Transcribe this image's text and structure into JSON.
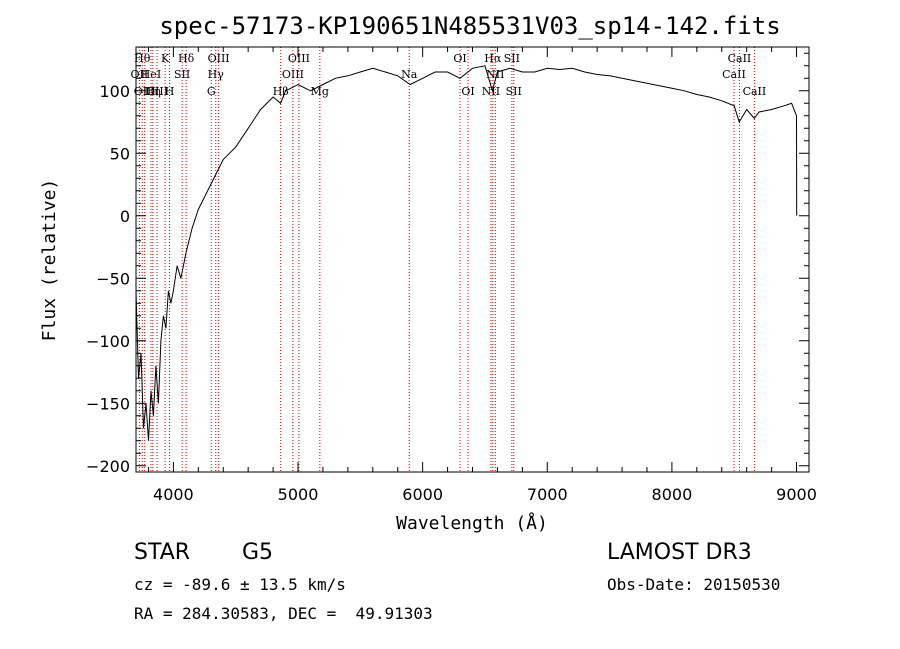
{
  "chart_data": {
    "type": "line",
    "title": "spec-57173-KP190651N485531V03_sp14-142.fits",
    "xlabel": "Wavelength (Å)",
    "ylabel": "Flux (relative)",
    "xlim": [
      3700,
      9100
    ],
    "ylim": [
      -205,
      135
    ],
    "xticks": [
      4000,
      5000,
      6000,
      7000,
      8000,
      9000
    ],
    "yticks": [
      -200,
      -150,
      -100,
      -50,
      0,
      50,
      100
    ],
    "spectrum": {
      "x": [
        3700,
        3720,
        3740,
        3760,
        3780,
        3800,
        3820,
        3840,
        3860,
        3880,
        3900,
        3920,
        3940,
        3960,
        3980,
        4000,
        4030,
        4060,
        4100,
        4150,
        4200,
        4250,
        4300,
        4350,
        4400,
        4450,
        4500,
        4600,
        4700,
        4800,
        4860,
        4900,
        5000,
        5100,
        5200,
        5300,
        5400,
        5500,
        5600,
        5700,
        5800,
        5900,
        6000,
        6100,
        6200,
        6300,
        6400,
        6500,
        6560,
        6600,
        6700,
        6800,
        6900,
        7000,
        7100,
        7200,
        7300,
        7400,
        7500,
        7600,
        7700,
        7800,
        7900,
        8000,
        8100,
        8200,
        8300,
        8400,
        8500,
        8540,
        8600,
        8660,
        8700,
        8800,
        8900,
        8960,
        9000,
        9001
      ],
      "y": [
        -60,
        -130,
        -110,
        -170,
        -150,
        -180,
        -140,
        -160,
        -120,
        -150,
        -100,
        -80,
        -90,
        -60,
        -70,
        -60,
        -40,
        -50,
        -30,
        -10,
        5,
        15,
        25,
        35,
        45,
        50,
        55,
        70,
        85,
        95,
        90,
        100,
        105,
        100,
        105,
        110,
        112,
        115,
        118,
        115,
        112,
        105,
        110,
        115,
        115,
        110,
        118,
        120,
        100,
        115,
        118,
        115,
        115,
        118,
        117,
        118,
        115,
        113,
        112,
        110,
        108,
        106,
        104,
        102,
        100,
        97,
        95,
        92,
        88,
        75,
        85,
        78,
        83,
        85,
        88,
        90,
        80,
        0
      ]
    },
    "lines": [
      {
        "wavelength": 3727,
        "label": "OII",
        "row": 2
      },
      {
        "wavelength": 3750,
        "label": "Hθ",
        "row": 1
      },
      {
        "wavelength": 3770,
        "label": "OIII",
        "row": 3
      },
      {
        "wavelength": 3820,
        "label": "HeI",
        "row": 2
      },
      {
        "wavelength": 3835,
        "label": "Hη",
        "row": 3
      },
      {
        "wavelength": 3869,
        "label": "OIII",
        "row": 3
      },
      {
        "wavelength": 3934,
        "label": "K",
        "row": 1
      },
      {
        "wavelength": 3969,
        "label": "H",
        "row": 3
      },
      {
        "wavelength": 4070,
        "label": "SII",
        "row": 2
      },
      {
        "wavelength": 4102,
        "label": "Hδ",
        "row": 1
      },
      {
        "wavelength": 4304,
        "label": "G",
        "row": 3
      },
      {
        "wavelength": 4340,
        "label": "Hγ",
        "row": 2
      },
      {
        "wavelength": 4363,
        "label": "OIII",
        "row": 1
      },
      {
        "wavelength": 4861,
        "label": "Hβ",
        "row": 3
      },
      {
        "wavelength": 4959,
        "label": "OIII",
        "row": 2
      },
      {
        "wavelength": 5007,
        "label": "OIII",
        "row": 1
      },
      {
        "wavelength": 5175,
        "label": "Mg",
        "row": 3
      },
      {
        "wavelength": 5892,
        "label": "Na",
        "row": 2
      },
      {
        "wavelength": 6300,
        "label": "OI",
        "row": 1
      },
      {
        "wavelength": 6364,
        "label": "OI",
        "row": 3
      },
      {
        "wavelength": 6548,
        "label": "NII",
        "row": 3
      },
      {
        "wavelength": 6563,
        "label": "Hα",
        "row": 1
      },
      {
        "wavelength": 6583,
        "label": "NII",
        "row": 2
      },
      {
        "wavelength": 6716,
        "label": "SII",
        "row": 1
      },
      {
        "wavelength": 6731,
        "label": "SII",
        "row": 3
      },
      {
        "wavelength": 8498,
        "label": "CaII",
        "row": 2
      },
      {
        "wavelength": 8542,
        "label": "CaII",
        "row": 1
      },
      {
        "wavelength": 8662,
        "label": "CaII",
        "row": 3
      }
    ]
  },
  "info": {
    "class": "STAR",
    "subclass": "G5",
    "survey": "LAMOST DR3",
    "cz": "cz = -89.6 ± 13.5 km/s",
    "obs_date": "Obs-Date: 20150530",
    "coords": "RA = 284.30583, DEC =  49.91303"
  },
  "colors": {
    "spectrum": "#000000",
    "line_marker": "#cc0000",
    "background": "#ffffff"
  }
}
